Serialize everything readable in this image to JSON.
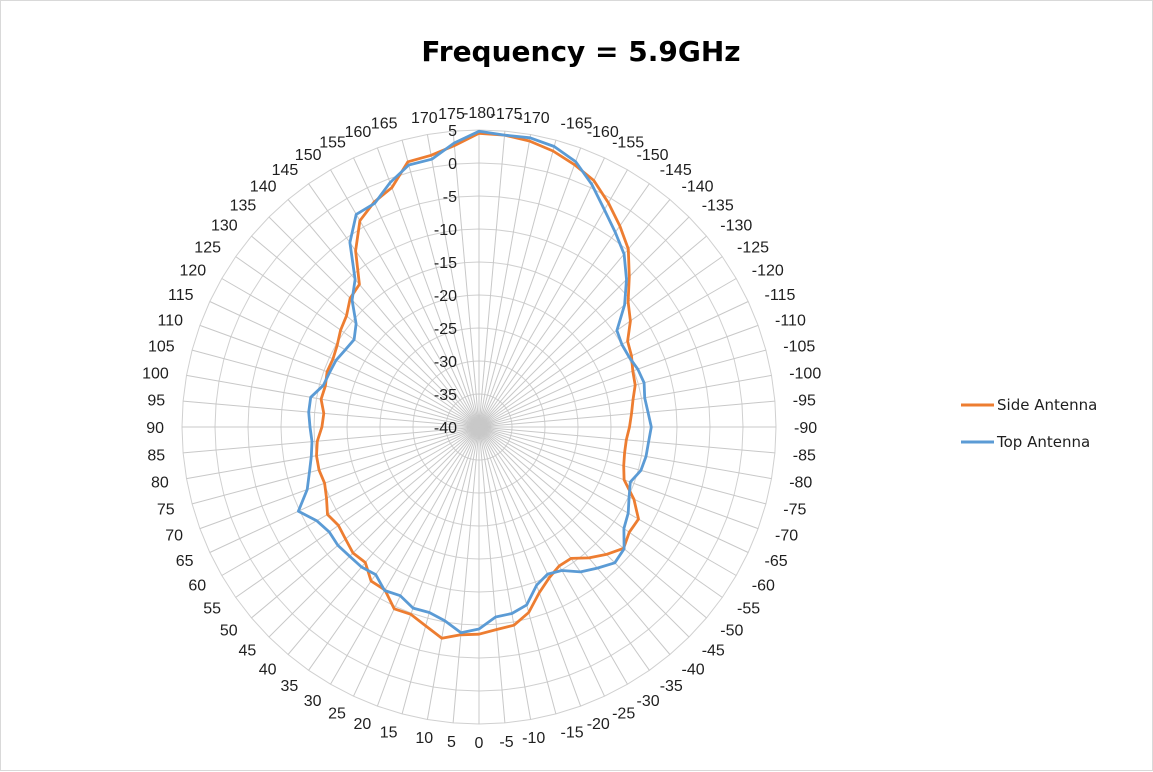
{
  "chart_data": {
    "type": "radar",
    "title": "Frequency = 5.9GHz",
    "angle_labels": [
      -180,
      -175,
      -170,
      -165,
      -160,
      -155,
      -150,
      -145,
      -140,
      -135,
      -130,
      -125,
      -120,
      -115,
      -110,
      -105,
      -100,
      -95,
      -90,
      -85,
      -80,
      -75,
      -70,
      -65,
      -60,
      -55,
      -50,
      -45,
      -40,
      -35,
      -30,
      -25,
      -20,
      -15,
      -10,
      -5,
      0,
      5,
      10,
      15,
      20,
      25,
      30,
      35,
      40,
      45,
      50,
      55,
      60,
      65,
      70,
      75,
      80,
      85,
      90,
      95,
      100,
      105,
      110,
      115,
      120,
      125,
      130,
      135,
      140,
      145,
      150,
      155,
      160,
      165,
      170,
      175
    ],
    "radial_ticks": [
      5,
      0,
      -5,
      -10,
      -15,
      -20,
      -25,
      -30,
      -35,
      -40
    ],
    "rlim": [
      -40,
      5
    ],
    "grid": true,
    "legend_position": "right",
    "series": [
      {
        "name": "Side Antenna",
        "color": "#ED7D31",
        "values": [
          4.5,
          4.4,
          4.0,
          3.3,
          2.3,
          1.2,
          -0.8,
          -2.8,
          -4.8,
          -7.8,
          -10.5,
          -12.0,
          -14.0,
          -14.5,
          -15.2,
          -15.5,
          -16.3,
          -16.8,
          -17.2,
          -17.6,
          -17.6,
          -17.3,
          -16.6,
          -14.1,
          -12.1,
          -12.2,
          -11.4,
          -12.7,
          -14.1,
          -15.7,
          -15.7,
          -14.8,
          -13.3,
          -10.9,
          -9.5,
          -9.2,
          -8.6,
          -8.4,
          -7.5,
          -8.8,
          -9.8,
          -9.6,
          -11.5,
          -11.5,
          -13.2,
          -13.0,
          -13.6,
          -14.0,
          -13.5,
          -14.5,
          -15.1,
          -14.9,
          -15.0,
          -15.4,
          -16.2,
          -16.4,
          -15.7,
          -15.9,
          -15.5,
          -15.6,
          -15.2,
          -14.4,
          -13.8,
          -12.4,
          -11.8,
          -7.4,
          -3.9,
          -2.4,
          -1.4,
          1.6,
          1.8,
          2.8
        ]
      },
      {
        "name": "Top Antenna",
        "color": "#5B9BD5",
        "values": [
          4.8,
          4.4,
          4.5,
          4.0,
          2.8,
          0.5,
          -2.0,
          -4.0,
          -5.8,
          -8.4,
          -11.2,
          -14.5,
          -15.0,
          -14.9,
          -14.4,
          -14.1,
          -14.5,
          -14.3,
          -13.9,
          -14.2,
          -14.3,
          -14.6,
          -15.6,
          -14.9,
          -13.9,
          -13.2,
          -11.3,
          -10.9,
          -12.1,
          -13.2,
          -14.9,
          -15.4,
          -14.5,
          -12.1,
          -11.3,
          -11.1,
          -9.4,
          -8.7,
          -10.2,
          -10.9,
          -10.8,
          -11.8,
          -11.4,
          -12.7,
          -12.3,
          -12.3,
          -12.1,
          -12.3,
          -11.6,
          -9.8,
          -12.3,
          -13.4,
          -14.2,
          -14.6,
          -14.4,
          -14.1,
          -14.1,
          -15.6,
          -15.9,
          -16.1,
          -16.6,
          -16.9,
          -15.7,
          -12.8,
          -10.8,
          -5.9,
          -2.8,
          -2.6,
          -0.6,
          1.1,
          1.2,
          3.2
        ]
      }
    ]
  }
}
